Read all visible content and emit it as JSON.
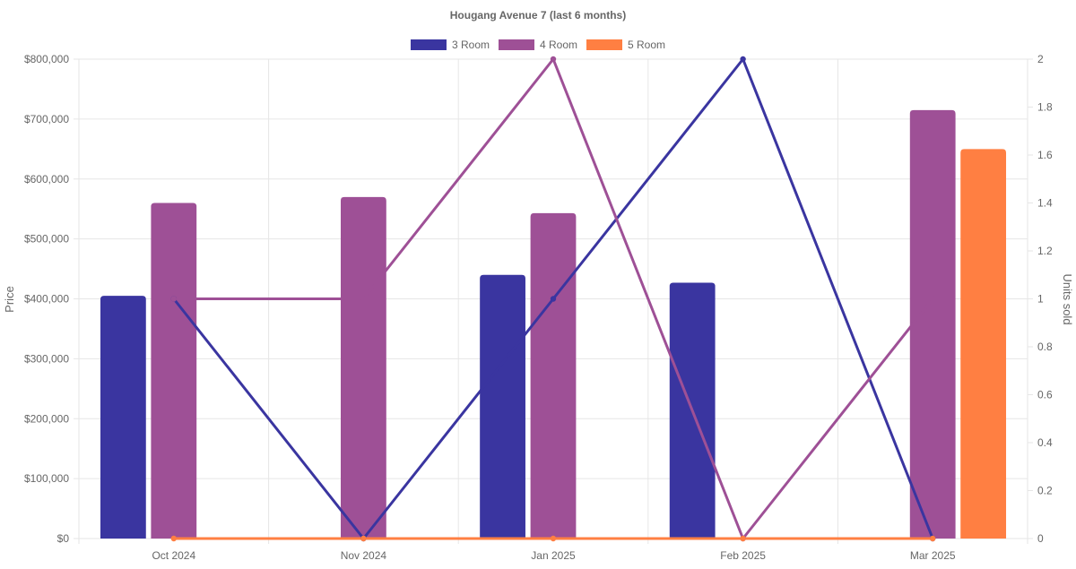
{
  "chart_data": {
    "type": "bar",
    "title": "Hougang Avenue 7 (last 6 months)",
    "categories": [
      "Oct 2024",
      "Nov 2024",
      "Jan 2025",
      "Feb 2025",
      "Mar 2025"
    ],
    "y_left": {
      "label": "Price",
      "range": [
        0,
        800000
      ],
      "ticks": [
        "$0",
        "$100,000",
        "$200,000",
        "$300,000",
        "$400,000",
        "$500,000",
        "$600,000",
        "$700,000",
        "$800,000"
      ],
      "tick_values": [
        0,
        100000,
        200000,
        300000,
        400000,
        500000,
        600000,
        700000,
        800000
      ]
    },
    "y_right": {
      "label": "Units sold",
      "range": [
        0,
        2
      ],
      "ticks": [
        "0",
        "0.2",
        "0.4",
        "0.6",
        "0.8",
        "1",
        "1.2",
        "1.4",
        "1.6",
        "1.8",
        "2"
      ],
      "tick_values": [
        0,
        0.2,
        0.4,
        0.6,
        0.8,
        1,
        1.2,
        1.4,
        1.6,
        1.8,
        2
      ]
    },
    "grid": true,
    "legend_position": "top",
    "series": [
      {
        "name": "3 Room",
        "color": "#3a35a0",
        "price": [
          405000,
          null,
          440000,
          427000,
          null
        ],
        "units": [
          1,
          0,
          1,
          2,
          0
        ]
      },
      {
        "name": "4 Room",
        "color": "#9e5096",
        "price": [
          560000,
          570000,
          543000,
          null,
          715000
        ],
        "units": [
          1,
          1,
          2,
          0,
          1
        ]
      },
      {
        "name": "5 Room",
        "color": "#ff7f42",
        "price": [
          null,
          null,
          null,
          null,
          650000
        ],
        "units": [
          0,
          0,
          0,
          0,
          0
        ]
      }
    ]
  }
}
